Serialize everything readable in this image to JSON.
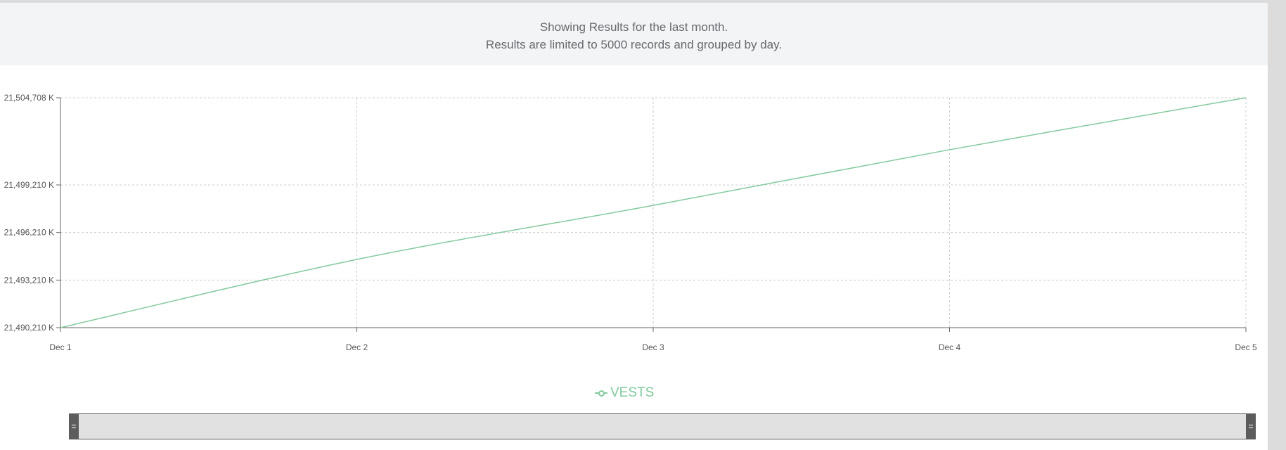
{
  "banner": {
    "line1": "Showing Results for the last month.",
    "line2": "Results are limited to 5000 records and grouped by day."
  },
  "colors": {
    "series": "#82ca9d",
    "grid": "#cccccc",
    "axis": "#666666"
  },
  "chart_data": {
    "type": "line",
    "x": [
      "Dec 1",
      "Dec 2",
      "Dec 3",
      "Dec 4",
      "Dec 5"
    ],
    "series": [
      {
        "name": "VESTS",
        "values": [
          21490210,
          21494510,
          21497920,
          21501430,
          21504708
        ]
      }
    ],
    "ylim": [
      21490210,
      21504708
    ],
    "yticks": [
      21490210,
      21493210,
      21496210,
      21499210,
      21504708
    ],
    "ytick_labels": [
      "21,490,210 K",
      "21,493,210 K",
      "21,496,210 K",
      "21,499,210 K",
      "21,504,708 K"
    ],
    "grid": true,
    "legend": "bottom-center",
    "xlabel": "",
    "ylabel": ""
  },
  "legend": {
    "label": "VESTS"
  }
}
